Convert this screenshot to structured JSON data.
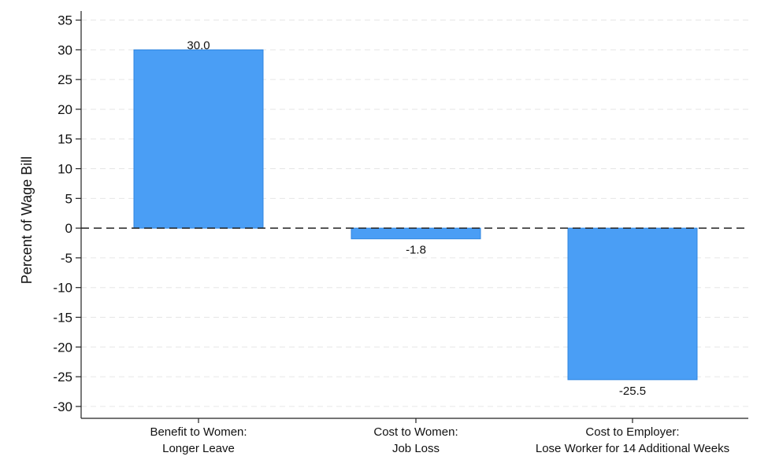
{
  "chart_data": {
    "type": "bar",
    "categories": [
      [
        "Benefit to Women:",
        "Longer Leave"
      ],
      [
        "Cost to Women:",
        "Job Loss"
      ],
      [
        "Cost to Employer:",
        "Lose Worker for 14 Additional Weeks"
      ]
    ],
    "values": [
      30.0,
      -1.8,
      -25.5
    ],
    "data_labels": [
      "30.0",
      "-1.8",
      "-25.5"
    ],
    "title": "",
    "xlabel": "",
    "ylabel": "Percent of Wage Bill",
    "ylim": [
      -32,
      36
    ],
    "yticks": [
      35,
      30,
      25,
      20,
      15,
      10,
      5,
      0,
      -5,
      -10,
      -15,
      -20,
      -25,
      -30
    ],
    "grid": true,
    "zero_line": "dashed",
    "bar_color": "#4a9ef5",
    "bar_edge_color": "#2f86e0"
  }
}
